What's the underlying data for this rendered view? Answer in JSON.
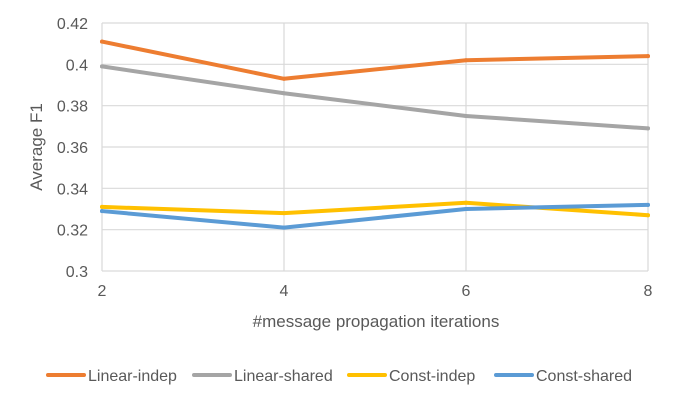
{
  "chart_data": {
    "type": "line",
    "title": "",
    "xlabel": "#message propagation iterations",
    "ylabel": "Average F1",
    "x": [
      2,
      4,
      6,
      8
    ],
    "x_tick_labels": [
      "2",
      "4",
      "6",
      "8"
    ],
    "ylim": [
      0.3,
      0.42
    ],
    "y_tick_values": [
      0.3,
      0.32,
      0.34,
      0.36,
      0.38,
      0.4,
      0.42
    ],
    "y_tick_labels": [
      "0.3",
      "0.32",
      "0.34",
      "0.36",
      "0.38",
      "0.4",
      "0.42"
    ],
    "grid": true,
    "legend_position": "bottom",
    "series": [
      {
        "name": "Linear-indep",
        "color": "#ed7d31",
        "values": [
          0.411,
          0.393,
          0.402,
          0.404
        ]
      },
      {
        "name": "Linear-shared",
        "color": "#a5a5a5",
        "values": [
          0.399,
          0.386,
          0.375,
          0.369
        ]
      },
      {
        "name": "Const-indep",
        "color": "#ffc000",
        "values": [
          0.331,
          0.328,
          0.333,
          0.327
        ]
      },
      {
        "name": "Const-shared",
        "color": "#5b9bd5",
        "values": [
          0.329,
          0.321,
          0.33,
          0.332
        ]
      }
    ]
  }
}
